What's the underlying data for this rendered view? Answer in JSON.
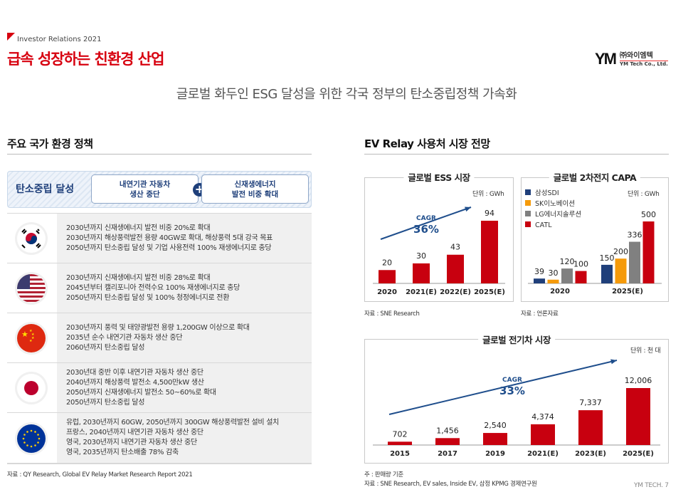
{
  "header": {
    "section_label": "Investor Relations 2021",
    "title": "급속 성장하는 친환경 산업",
    "subtitle": "글로벌 화두인 ESG 달성을 위한 각국 정부의 탄소중립정책 가속화",
    "logo": {
      "mark": "YM",
      "korean": "㈜와이엠텍",
      "english": "YM Tech Co., Ltd."
    }
  },
  "left": {
    "heading": "주요 국가 환경 정책",
    "goal": {
      "label": "탄소중립 달성",
      "item1": "내연기관 자동차\n생산 중단",
      "plus": "+",
      "item2": "신재생에너지\n발전 비중 확대"
    },
    "countries": [
      {
        "flag": "korea-flag-icon",
        "lines": "2030년까지 신재생에너지 발전 비중 20%로 확대\n2030년까지 해상풍력발전 용량 40GW로 확대, 해상풍력 5대 강국 목표\n2050년까지 탄소중립 달성 및 기업 사용전력 100% 재생에너지로 충당"
      },
      {
        "flag": "usa-flag-icon",
        "lines": "2030년까지 신재생에너지 발전 비중 28%로 확대\n2045년부터 캘리포니아 전력수요 100% 재생에너지로 충당\n2050년까지 탄소중립 달성 및 100% 청정에너지로 전환"
      },
      {
        "flag": "china-flag-icon",
        "lines": "2030년까지 풍력 및 태양광발전 용량 1,200GW 이상으로 확대\n2035년 순수 내연기관 자동차 생산 중단\n2060년까지 탄소중립 달성"
      },
      {
        "flag": "japan-flag-icon",
        "lines": "2030년대 중반 이후 내연기관 자동차 생산 중단\n2040년까지 해상풍력 발전소 4,500만kW 생산\n2050년까지 신재생에너지 발전소 50~60%로 확대\n2050년까지 탄소중립 달성"
      },
      {
        "flag": "eu-flag-icon",
        "lines": "유럽, 2030년까지 60GW, 2050년까지 300GW 해상풍력발전 설비 설치\n프랑스, 2040년까지 내연기관 자동차 생산 중단\n영국, 2030년까지 내연기관 자동차 생산 중단\n영국, 2035년까지 탄소배출 78% 감축"
      }
    ],
    "source": "자료 : QY Research, Global EV Relay Market Research Report 2021"
  },
  "right": {
    "heading": "EV Relay 사용처 시장 전망",
    "note": "주 : 판매량 기준",
    "source_ev": "자료 : SNE Research, EV sales, Inside EV, 삼정 KPMG 경제연구원",
    "page": "YM TECH. 7"
  },
  "chart_data": [
    {
      "type": "bar",
      "title": "글로벌 ESS 시장",
      "unit": "단위 : GWh",
      "categories": [
        "2020",
        "2021(E)",
        "2022(E)",
        "2025(E)"
      ],
      "values": [
        20,
        30,
        43,
        94
      ],
      "value_labels": [
        "20",
        "30",
        "43",
        "94"
      ],
      "annotation": {
        "label": "CAGR",
        "value": "36%"
      },
      "source": "자료 : SNE Research",
      "color": "#c8000f"
    },
    {
      "type": "bar",
      "title": "글로벌 2차전지 CAPA",
      "unit": "단위 : GWh",
      "categories": [
        "2020",
        "2025(E)"
      ],
      "series": [
        {
          "name": "삼성SDI",
          "values": [
            39,
            150
          ],
          "color": "#1f3f7a"
        },
        {
          "name": "SK이노베이션",
          "values": [
            30,
            200
          ],
          "color": "#f59a0a"
        },
        {
          "name": "LG에너지솔루션",
          "values": [
            120,
            336
          ],
          "color": "#808080"
        },
        {
          "name": "CATL",
          "values": [
            100,
            500
          ],
          "color": "#c8000f"
        }
      ],
      "legend": "top-left",
      "source": "자료 : 언론자료"
    },
    {
      "type": "bar",
      "title": "글로벌 전기차 시장",
      "unit": "단위 : 천 대",
      "categories": [
        "2015",
        "2017",
        "2019",
        "2021(E)",
        "2023(E)",
        "2025(E)"
      ],
      "values": [
        702,
        1456,
        2540,
        4374,
        7337,
        12006
      ],
      "value_labels": [
        "702",
        "1,456",
        "2,540",
        "4,374",
        "7,337",
        "12,006"
      ],
      "annotation": {
        "label": "CAGR",
        "value": "33%"
      },
      "color": "#c8000f"
    }
  ]
}
